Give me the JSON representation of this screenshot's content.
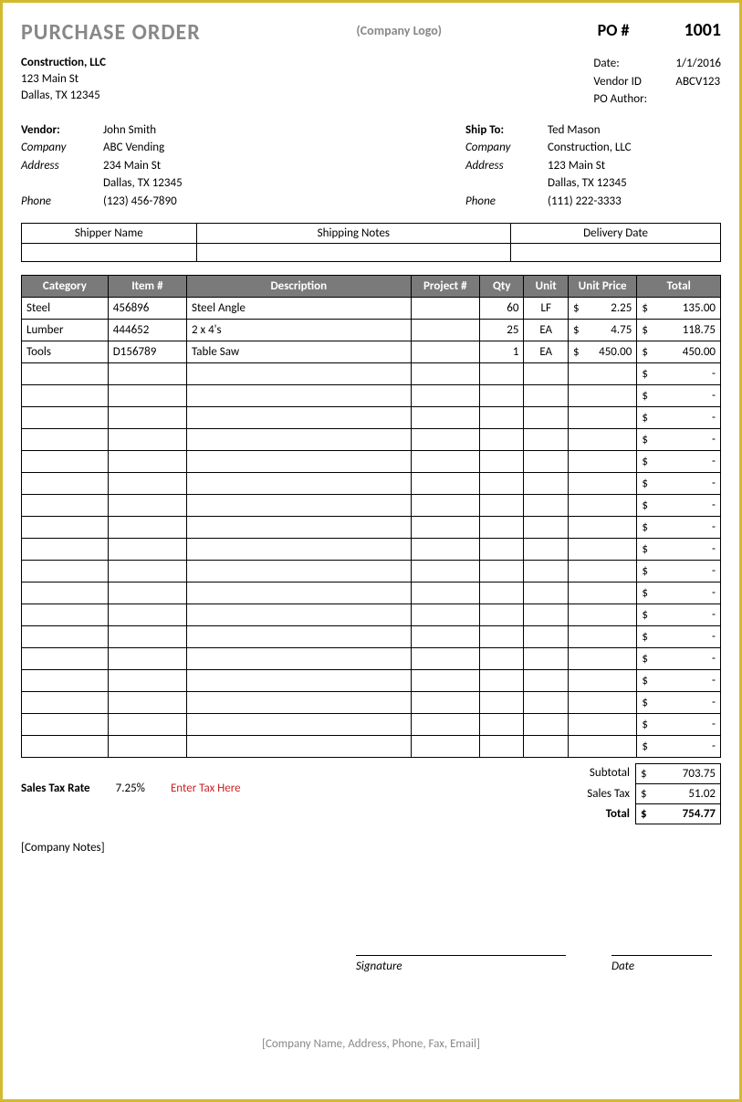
{
  "header": {
    "title": "PURCHASE ORDER",
    "logo_placeholder": "(Company Logo)",
    "po_label": "PO #",
    "po_number": "1001"
  },
  "company": {
    "name": "Construction, LLC",
    "street": "123 Main St",
    "city": "Dallas, TX 12345"
  },
  "meta": {
    "date_label": "Date:",
    "date_value": "1/1/2016",
    "vendor_id_label": "Vendor ID",
    "vendor_id_value": "ABCV123",
    "author_label": "PO Author:",
    "author_value": ""
  },
  "vendor": {
    "heading": "Vendor:",
    "name": "John Smith",
    "company_label": "Company",
    "company_value": "ABC Vending",
    "address_label": "Address",
    "address_line1": "234 Main St",
    "address_line2": "Dallas, TX 12345",
    "phone_label": "Phone",
    "phone_value": "(123) 456-7890"
  },
  "shipto": {
    "heading": "Ship To:",
    "name": "Ted Mason",
    "company_label": "Company",
    "company_value": "Construction, LLC",
    "address_label": "Address",
    "address_line1": "123 Main St",
    "address_line2": "Dallas, TX 12345",
    "phone_label": "Phone",
    "phone_value": "(111) 222-3333"
  },
  "ship_table": {
    "headers": [
      "Shipper Name",
      "Shipping Notes",
      "Delivery Date"
    ]
  },
  "items_table": {
    "headers": {
      "category": "Category",
      "item": "Item #",
      "description": "Description",
      "project": "Project #",
      "qty": "Qty",
      "unit": "Unit",
      "unit_price": "Unit Price",
      "total": "Total"
    },
    "rows": [
      {
        "category": "Steel",
        "item": "456896",
        "description": "Steel Angle",
        "project": "",
        "qty": "60",
        "unit": "LF",
        "unit_price": "2.25",
        "total": "135.00"
      },
      {
        "category": "Lumber",
        "item": "444652",
        "description": "2 x 4's",
        "project": "",
        "qty": "25",
        "unit": "EA",
        "unit_price": "4.75",
        "total": "118.75"
      },
      {
        "category": "Tools",
        "item": "D156789",
        "description": "Table Saw",
        "project": "",
        "qty": "1",
        "unit": "EA",
        "unit_price": "450.00",
        "total": "450.00"
      }
    ],
    "empty_rows": 18,
    "currency_symbol": "$",
    "empty_total": "-"
  },
  "summary": {
    "tax_rate_label": "Sales Tax Rate",
    "tax_rate_value": "7.25%",
    "tax_hint": "Enter Tax Here",
    "subtotal_label": "Subtotal",
    "subtotal_value": "703.75",
    "salestax_label": "Sales Tax",
    "salestax_value": "51.02",
    "total_label": "Total",
    "total_value": "754.77"
  },
  "notes": {
    "placeholder": "[Company Notes]"
  },
  "signature": {
    "sig_label": "Signature",
    "date_label": "Date"
  },
  "footer": {
    "text": "[Company Name, Address, Phone, Fax, Email]"
  },
  "colors": {
    "border": "#d4b830",
    "header_bg": "#7a7a7a",
    "header_fg": "#ffffff",
    "muted": "#888888",
    "warning": "#cc2222"
  }
}
